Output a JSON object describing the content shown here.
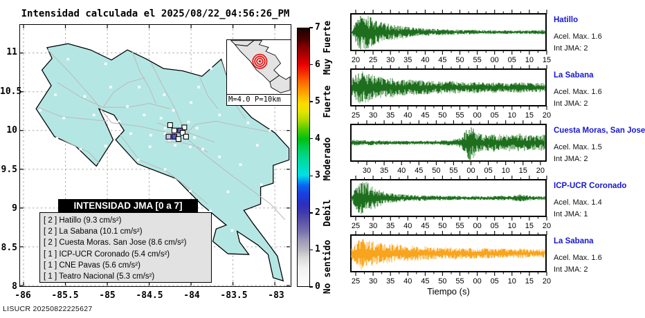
{
  "title": "Intensidad calculada el 2025/08/22_04:56:26_PM",
  "footer": {
    "agency": "LISUCR",
    "run_id": "20250822225627"
  },
  "map": {
    "lon_range": [
      -86,
      -83
    ],
    "lat_range": [
      8,
      11
    ],
    "x_ticks": [
      "-86",
      "-85.5",
      "-85",
      "-84.5",
      "-84",
      "-83.5",
      "-83"
    ],
    "y_ticks": [
      "8",
      "8.5",
      "9",
      "9.5",
      "10",
      "10.5",
      "11"
    ],
    "land_color": "#b4e7e4",
    "road_color": "#bbbbbb",
    "inset": {
      "caption": "M=4.0 P=10km",
      "epicenter_color": "#e81010",
      "land_color": "#e3e3e3"
    },
    "legend": {
      "title": "INTENSIDAD JMA [0 a 7]",
      "items": [
        "[ 2 ]  Hatillo (9.3 cm/s²)",
        "[ 2 ]  La Sabana (10.1 cm/s²)",
        "[ 2 ]  Cuesta Moras. San Jose (8.6 cm/s²)",
        "[ 1 ]  ICP-UCR Coronado (5.4 cm/s²)",
        "[ 1 ]  CNE Pavas (5.6 cm/s²)",
        "[ 1 ]  Teatro Nacional (5.3 cm/s²)"
      ]
    },
    "land_outline": [
      [
        -85.72,
        11.07
      ],
      [
        -85.47,
        11.12
      ],
      [
        -85.2,
        11.04
      ],
      [
        -84.95,
        10.91
      ],
      [
        -84.76,
        11.04
      ],
      [
        -84.53,
        10.92
      ],
      [
        -84.33,
        10.8
      ],
      [
        -84.1,
        10.77
      ],
      [
        -83.87,
        10.7
      ],
      [
        -83.64,
        10.92
      ],
      [
        -83.5,
        10.43
      ],
      [
        -83.28,
        10.17
      ],
      [
        -83.0,
        9.97
      ],
      [
        -82.83,
        9.77
      ],
      [
        -82.83,
        9.62
      ],
      [
        -83.02,
        9.55
      ],
      [
        -83.02,
        9.32
      ],
      [
        -83.17,
        9.27
      ],
      [
        -83.17,
        9.05
      ],
      [
        -83.37,
        8.97
      ],
      [
        -83.26,
        8.8
      ],
      [
        -83.12,
        8.6
      ],
      [
        -82.97,
        8.38
      ],
      [
        -82.9,
        8.06
      ],
      [
        -83.02,
        8.1
      ],
      [
        -83.08,
        8.4
      ],
      [
        -83.2,
        8.52
      ],
      [
        -83.45,
        8.7
      ],
      [
        -83.42,
        8.56
      ],
      [
        -83.31,
        8.4
      ],
      [
        -83.56,
        8.41
      ],
      [
        -83.74,
        8.57
      ],
      [
        -83.7,
        8.73
      ],
      [
        -83.58,
        8.78
      ],
      [
        -83.88,
        9.05
      ],
      [
        -84.18,
        9.38
      ],
      [
        -84.64,
        9.57
      ],
      [
        -84.9,
        9.88
      ],
      [
        -84.8,
        10.0
      ],
      [
        -84.92,
        10.2
      ],
      [
        -85.1,
        10.28
      ],
      [
        -85.0,
        10.05
      ],
      [
        -84.93,
        9.88
      ],
      [
        -85.05,
        9.68
      ],
      [
        -85.13,
        9.54
      ],
      [
        -85.38,
        9.8
      ],
      [
        -85.63,
        9.92
      ],
      [
        -85.85,
        10.28
      ],
      [
        -85.67,
        10.58
      ],
      [
        -85.78,
        10.78
      ],
      [
        -85.66,
        10.93
      ]
    ],
    "roads": [
      [
        [
          -85.72,
          11.05
        ],
        [
          -85.45,
          10.75
        ],
        [
          -85.18,
          10.42
        ],
        [
          -84.95,
          10.1
        ],
        [
          -84.6,
          10.05
        ],
        [
          -84.3,
          9.98
        ],
        [
          -84.08,
          9.93
        ]
      ],
      [
        [
          -84.08,
          9.93
        ],
        [
          -83.85,
          9.7
        ],
        [
          -83.55,
          9.45
        ],
        [
          -83.3,
          9.25
        ],
        [
          -83.05,
          9.05
        ],
        [
          -82.88,
          8.85
        ]
      ],
      [
        [
          -84.08,
          9.93
        ],
        [
          -83.95,
          10.08
        ],
        [
          -83.7,
          10.12
        ],
        [
          -83.4,
          10.05
        ],
        [
          -83.05,
          9.98
        ]
      ],
      [
        [
          -84.48,
          10.88
        ],
        [
          -84.35,
          10.6
        ],
        [
          -84.2,
          10.3
        ],
        [
          -84.1,
          10.05
        ]
      ],
      [
        [
          -85.6,
          10.62
        ],
        [
          -85.3,
          10.42
        ],
        [
          -85.05,
          10.3
        ],
        [
          -84.75,
          10.3
        ],
        [
          -84.5,
          10.35
        ],
        [
          -84.25,
          10.28
        ]
      ],
      [
        [
          -84.85,
          9.95
        ],
        [
          -84.62,
          9.62
        ],
        [
          -84.3,
          9.48
        ],
        [
          -84.02,
          9.25
        ],
        [
          -83.8,
          9.05
        ]
      ],
      [
        [
          -85.83,
          10.3
        ],
        [
          -85.55,
          10.18
        ],
        [
          -85.28,
          10.15
        ],
        [
          -85.0,
          10.12
        ]
      ],
      [
        [
          -85.62,
          9.93
        ],
        [
          -85.42,
          9.82
        ],
        [
          -85.22,
          9.72
        ],
        [
          -85.1,
          9.58
        ]
      ],
      [
        [
          -84.7,
          11.02
        ],
        [
          -84.62,
          10.78
        ],
        [
          -84.5,
          10.55
        ],
        [
          -84.42,
          10.35
        ]
      ],
      [
        [
          -83.64,
          10.9
        ],
        [
          -83.55,
          10.6
        ],
        [
          -83.48,
          10.35
        ],
        [
          -83.35,
          10.15
        ]
      ],
      [
        [
          -84.4,
          10.1
        ],
        [
          -84.22,
          10.02
        ],
        [
          -84.05,
          9.98
        ],
        [
          -83.9,
          9.92
        ],
        [
          -83.72,
          9.85
        ]
      ],
      [
        [
          -84.3,
          9.85
        ],
        [
          -84.12,
          9.85
        ],
        [
          -83.95,
          9.8
        ],
        [
          -83.8,
          9.72
        ]
      ],
      [
        [
          -85.05,
          10.3
        ],
        [
          -84.92,
          10.5
        ],
        [
          -84.75,
          10.62
        ],
        [
          -84.55,
          10.68
        ]
      ],
      [
        [
          -83.9,
          10.7
        ],
        [
          -83.8,
          10.45
        ],
        [
          -83.68,
          10.28
        ]
      ]
    ],
    "station_dots": [
      [
        -85.47,
        10.92
      ],
      [
        -85.02,
        10.86
      ],
      [
        -84.37,
        11.0
      ],
      [
        -83.76,
        10.8
      ],
      [
        -85.62,
        10.46
      ],
      [
        -85.27,
        10.44
      ],
      [
        -84.96,
        10.56
      ],
      [
        -84.62,
        10.56
      ],
      [
        -84.32,
        10.46
      ],
      [
        -84.0,
        10.36
      ],
      [
        -83.66,
        10.2
      ],
      [
        -83.32,
        10.1
      ],
      [
        -83.06,
        10.0
      ],
      [
        -85.8,
        10.26
      ],
      [
        -85.52,
        10.16
      ],
      [
        -85.16,
        10.2
      ],
      [
        -84.86,
        10.12
      ],
      [
        -84.56,
        10.2
      ],
      [
        -85.6,
        9.9
      ],
      [
        -85.32,
        9.76
      ],
      [
        -85.02,
        9.8
      ],
      [
        -84.72,
        9.96
      ],
      [
        -84.48,
        9.94
      ],
      [
        -84.63,
        9.62
      ],
      [
        -84.31,
        9.5
      ],
      [
        -84.01,
        9.22
      ],
      [
        -83.77,
        8.96
      ],
      [
        -83.51,
        8.71
      ],
      [
        -83.31,
        8.56
      ],
      [
        -83.16,
        9.3
      ],
      [
        -83.41,
        9.56
      ],
      [
        -83.66,
        9.66
      ],
      [
        -83.86,
        9.76
      ],
      [
        -84.36,
        10.16
      ],
      [
        -84.21,
        10.26
      ],
      [
        -83.46,
        10.41
      ],
      [
        -83.91,
        10.56
      ],
      [
        -84.76,
        10.31
      ],
      [
        -83.21,
        9.81
      ],
      [
        -83.56,
        9.21
      ],
      [
        -84.49,
        9.79
      ],
      [
        -84.91,
        9.96
      ],
      [
        -84.31,
        9.96
      ],
      [
        -84.26,
        9.88
      ],
      [
        -84.19,
        9.81
      ],
      [
        -84.01,
        9.79
      ],
      [
        -83.96,
        9.91
      ],
      [
        -83.93,
        10.03
      ],
      [
        -84.03,
        10.11
      ],
      [
        -84.31,
        10.03
      ]
    ],
    "intensity_markers": [
      {
        "lon": -84.25,
        "lat": 10.07,
        "fill": "#ffffff"
      },
      {
        "lon": -84.08,
        "lat": 10.04,
        "fill": "#ffffff"
      },
      {
        "lon": -84.2,
        "lat": 10.0,
        "fill": "#ffffff"
      },
      {
        "lon": -84.13,
        "lat": 10.0,
        "fill": "#6f66d6"
      },
      {
        "lon": -84.1,
        "lat": 9.97,
        "fill": "#ffffff"
      },
      {
        "lon": -84.27,
        "lat": 9.92,
        "fill": "#c9c6ea"
      },
      {
        "lon": -84.2,
        "lat": 9.92,
        "fill": "#5d55cf"
      },
      {
        "lon": -84.15,
        "lat": 9.89,
        "fill": "#ffffff"
      },
      {
        "lon": -84.06,
        "lat": 9.92,
        "fill": "#ffffff"
      }
    ]
  },
  "colorbar": {
    "ticks": [
      "0",
      "1",
      "2",
      "3",
      "4",
      "5",
      "6",
      "7"
    ],
    "range": [
      0,
      7
    ],
    "category_labels": [
      {
        "text": "No sentido",
        "value": 0.55
      },
      {
        "text": "Debil",
        "value": 2.0
      },
      {
        "text": "Moderado",
        "value": 3.45
      },
      {
        "text": "Fuerte",
        "value": 5.0
      },
      {
        "text": "Muy Fuerte",
        "value": 6.45
      }
    ],
    "stops": [
      [
        0,
        "#ffffff"
      ],
      [
        7,
        "#f0f0f0"
      ],
      [
        11,
        "#d9d9d9"
      ],
      [
        14,
        "#b9b9c4"
      ],
      [
        18,
        "#9b97b4"
      ],
      [
        21,
        "#7a74ae"
      ],
      [
        25,
        "#5b54a8"
      ],
      [
        29,
        "#3d37ac"
      ],
      [
        32,
        "#2b2fc0"
      ],
      [
        36,
        "#1a41e0"
      ],
      [
        39,
        "#0b64f0"
      ],
      [
        41,
        "#00a0f0"
      ],
      [
        43,
        "#00e0e8"
      ],
      [
        46,
        "#00ddc0"
      ],
      [
        50,
        "#00d890"
      ],
      [
        54,
        "#00cc50"
      ],
      [
        57,
        "#00c010"
      ],
      [
        61,
        "#55cc00"
      ],
      [
        64,
        "#a8d800"
      ],
      [
        68,
        "#e8e400"
      ],
      [
        71,
        "#ffd800"
      ],
      [
        75,
        "#ffa400"
      ],
      [
        79,
        "#ff6c00"
      ],
      [
        82,
        "#f83800"
      ],
      [
        86,
        "#e80000"
      ],
      [
        89,
        "#b80000"
      ],
      [
        93,
        "#800000"
      ],
      [
        96,
        "#480000"
      ],
      [
        100,
        "#1c0000"
      ]
    ]
  },
  "chart_data": {
    "type": "line",
    "xlabel": "Tiempo (s)",
    "panels": [
      {
        "station": "Hatillo",
        "accel": "Acel. Max. 1.6",
        "jma": "Int JMA: 2",
        "color": "#1d6f1d",
        "color_light": "#8cbb8c",
        "tick_start": 8,
        "ticks": [
          "20",
          "25",
          "30",
          "35",
          "40",
          "45",
          "50",
          "55",
          "00",
          "05",
          "10",
          "15"
        ],
        "envelope": [
          0.1,
          0.92,
          0.85,
          0.6,
          0.48,
          0.4,
          0.32,
          0.26,
          0.22,
          0.19,
          0.17,
          0.15,
          0.14,
          0.13,
          0.12,
          0.12,
          0.11,
          0.11,
          0.1,
          0.1,
          0.1,
          0.1,
          0.11,
          0.12
        ]
      },
      {
        "station": "La Sabana",
        "accel": "Acel. Max. 1.6",
        "jma": "Int JMA: 2",
        "color": "#1d6f1d",
        "color_light": "#8cbb8c",
        "tick_start": 8,
        "ticks": [
          "25",
          "30",
          "35",
          "40",
          "45",
          "50",
          "55",
          "00",
          "05",
          "10",
          "15",
          "20"
        ],
        "envelope": [
          0.45,
          0.9,
          0.72,
          0.6,
          0.52,
          0.48,
          0.44,
          0.4,
          0.37,
          0.35,
          0.33,
          0.31,
          0.33,
          0.29,
          0.27,
          0.3,
          0.25,
          0.27,
          0.23,
          0.25,
          0.28,
          0.23,
          0.25,
          0.22
        ]
      },
      {
        "station": "Cuesta Moras, San Jose",
        "accel": "Acel. Max. 1.5",
        "jma": "Int JMA: 2",
        "color": "#1d6f1d",
        "color_light": "#8cbb8c",
        "tick_start": 24,
        "ticks": [
          "30",
          "35",
          "40",
          "45",
          "50",
          "55",
          "00",
          "05",
          "10",
          "15",
          "20"
        ],
        "envelope": [
          0.14,
          0.16,
          0.13,
          0.12,
          0.11,
          0.1,
          0.11,
          0.1,
          0.1,
          0.1,
          0.11,
          0.13,
          0.17,
          0.28,
          0.95,
          0.5,
          0.42,
          0.48,
          0.38,
          0.44,
          0.48,
          0.38,
          0.42,
          0.4
        ]
      },
      {
        "station": "ICP-UCR Coronado",
        "accel": "Acel. Max. 1.4",
        "jma": "Int JMA: 1",
        "color": "#1d6f1d",
        "color_light": "#8cbb8c",
        "tick_start": 8,
        "ticks": [
          "25",
          "30",
          "35",
          "40",
          "45",
          "50",
          "55",
          "00",
          "05",
          "10",
          "15",
          "20"
        ],
        "envelope": [
          0.15,
          0.95,
          0.75,
          0.45,
          0.3,
          0.24,
          0.2,
          0.17,
          0.15,
          0.14,
          0.13,
          0.12,
          0.11,
          0.11,
          0.1,
          0.11,
          0.1,
          0.11,
          0.13,
          0.11,
          0.2,
          0.13,
          0.11,
          0.1
        ]
      },
      {
        "station": "La Sabana",
        "accel": "Acel. Max. 1.6",
        "jma": "Int JMA: 2",
        "color": "#f8a41c",
        "color_light": "#ffd186",
        "tick_start": 8,
        "ticks": [
          "25",
          "30",
          "35",
          "40",
          "45",
          "50",
          "55",
          "00",
          "05",
          "10",
          "15",
          "20"
        ],
        "envelope": [
          0.4,
          0.88,
          0.7,
          0.58,
          0.52,
          0.47,
          0.44,
          0.41,
          0.38,
          0.35,
          0.32,
          0.3,
          0.32,
          0.28,
          0.3,
          0.26,
          0.28,
          0.24,
          0.26,
          0.24,
          0.26,
          0.22,
          0.24,
          0.22
        ]
      }
    ]
  }
}
